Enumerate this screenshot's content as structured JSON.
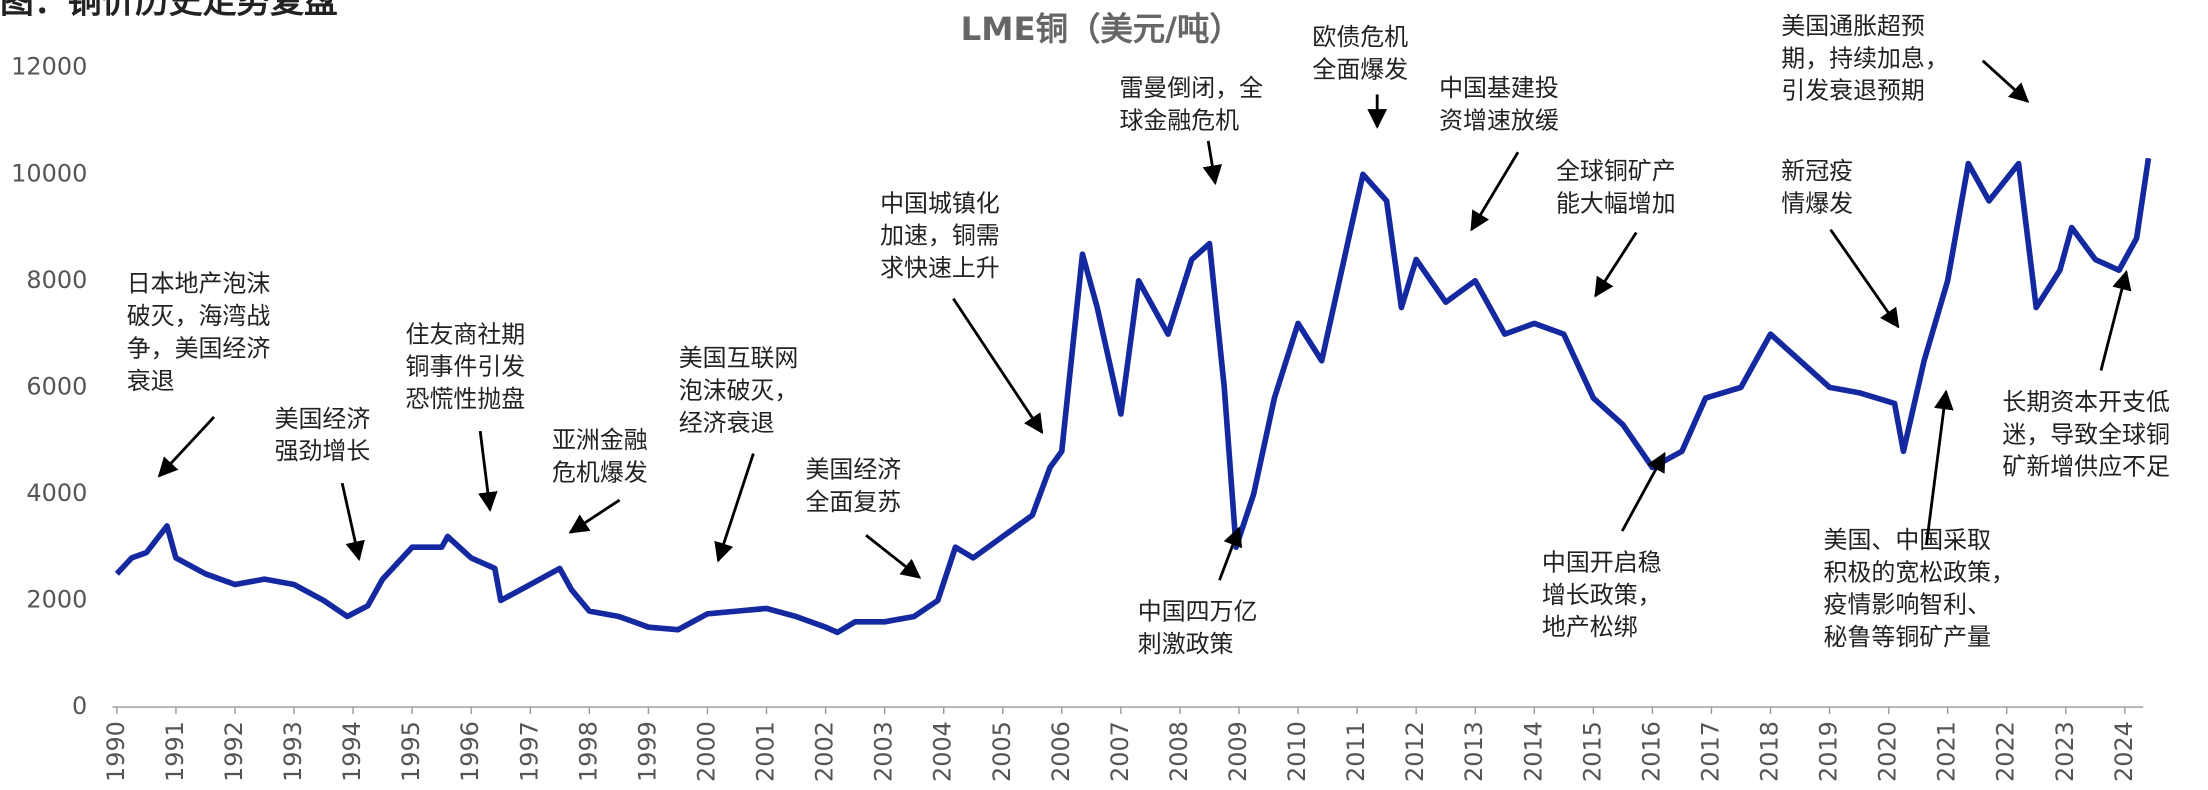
{
  "chart_data": {
    "type": "line",
    "figure_caption": "图：铜价历史走势复盘",
    "title": "LME铜（美元/吨）",
    "color": "#1428a0",
    "x": [
      1990,
      1990.25,
      1990.5,
      1990.85,
      1991,
      1991.5,
      1992,
      1992.5,
      1993,
      1993.5,
      1993.9,
      1994.25,
      1994.5,
      1995,
      1995.5,
      1995.6,
      1996,
      1996.4,
      1996.5,
      1997,
      1997.5,
      1997.7,
      1998,
      1998.5,
      1999,
      1999.5,
      2000,
      2000.5,
      2001,
      2001.5,
      2002,
      2002.2,
      2002.5,
      2003,
      2003.5,
      2003.9,
      2004.2,
      2004.5,
      2005,
      2005.5,
      2005.8,
      2006,
      2006.35,
      2006.6,
      2007,
      2007.3,
      2007.8,
      2008.2,
      2008.5,
      2008.75,
      2008.95,
      2009.25,
      2009.6,
      2010,
      2010.4,
      2010.9,
      2011.1,
      2011.5,
      2011.75,
      2012,
      2012.5,
      2013,
      2013.5,
      2014,
      2014.5,
      2015,
      2015.5,
      2016,
      2016.5,
      2016.9,
      2017.5,
      2018,
      2018.5,
      2019,
      2019.5,
      2020.1,
      2020.25,
      2020.6,
      2021,
      2021.35,
      2021.7,
      2022.2,
      2022.5,
      2022.9,
      2023.1,
      2023.5,
      2023.9,
      2024.2,
      2024.4
    ],
    "values": [
      2500,
      2800,
      2900,
      3400,
      2800,
      2500,
      2300,
      2400,
      2300,
      2000,
      1700,
      1900,
      2400,
      3000,
      3000,
      3200,
      2800,
      2600,
      2000,
      2300,
      2600,
      2200,
      1800,
      1700,
      1500,
      1450,
      1750,
      1800,
      1850,
      1700,
      1500,
      1400,
      1600,
      1600,
      1700,
      2000,
      3000,
      2800,
      3200,
      3600,
      4500,
      4800,
      8500,
      7500,
      5500,
      8000,
      7000,
      8400,
      8700,
      6000,
      3000,
      4000,
      5800,
      7200,
      6500,
      9000,
      10000,
      9500,
      7500,
      8400,
      7600,
      8000,
      7000,
      7200,
      7000,
      5800,
      5300,
      4500,
      4800,
      5800,
      6000,
      7000,
      6500,
      6000,
      5900,
      5700,
      4800,
      6500,
      8000,
      10200,
      9500,
      10200,
      7500,
      8200,
      9000,
      8400,
      8200,
      8800,
      10300
    ],
    "xlim": [
      1990,
      2024.5
    ],
    "xticks": [
      1990,
      1991,
      1992,
      1993,
      1994,
      1995,
      1996,
      1997,
      1998,
      1999,
      2000,
      2001,
      2002,
      2003,
      2004,
      2005,
      2006,
      2007,
      2008,
      2009,
      2010,
      2011,
      2012,
      2013,
      2014,
      2015,
      2016,
      2017,
      2018,
      2019,
      2020,
      2021,
      2022,
      2023,
      2024
    ],
    "ylim": [
      0,
      12000
    ],
    "yticks": [
      0,
      2000,
      4000,
      6000,
      8000,
      10000,
      12000
    ],
    "annotations": [
      [
        "日本地产泡沫",
        "破灭，海湾战",
        "争，美国经济",
        "衰退"
      ],
      [
        "美国经济",
        "强劲增长"
      ],
      [
        "住友商社期",
        "铜事件引发",
        "恐慌性抛盘"
      ],
      [
        "亚洲金融",
        "危机爆发"
      ],
      [
        "美国互联网",
        "泡沫破灭，",
        "经济衰退"
      ],
      [
        "美国经济",
        "全面复苏"
      ],
      [
        "中国城镇化",
        "加速，铜需",
        "求快速上升"
      ],
      [
        "雷曼倒闭，全",
        "球金融危机"
      ],
      [
        "欧债危机",
        "全面爆发"
      ],
      [
        "中国基建投",
        "资增速放缓"
      ],
      [
        "全球铜矿产",
        "能大幅增加"
      ],
      [
        "美国通胀超预",
        "期，持续加息，",
        "引发衰退预期"
      ],
      [
        "新冠疫",
        "情爆发"
      ],
      [
        "中国四万亿",
        "刺激政策"
      ],
      [
        "中国开启稳",
        "增长政策，",
        "地产松绑"
      ],
      [
        "美国、中国采取",
        "积极的宽松政策，",
        "疫情影响智利、",
        "秘鲁等铜矿产量"
      ],
      [
        "长期资本开支低",
        "迷，导致全球铜",
        "矿新增供应不足"
      ]
    ]
  }
}
